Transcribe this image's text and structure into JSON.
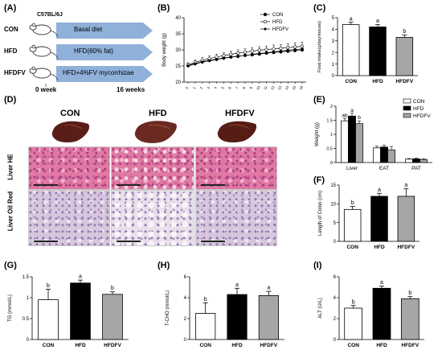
{
  "panel_labels": {
    "A": "(A)",
    "B": "(B)",
    "C": "(C)",
    "D": "(D)",
    "E": "(E)",
    "F": "(F)",
    "G": "(G)",
    "H": "(H)",
    "I": "(I)"
  },
  "panel_a": {
    "mouse_strain": "C57BL/6J",
    "groups": [
      {
        "name": "CON",
        "diet": "Basal diet"
      },
      {
        "name": "HFD",
        "diet": "HFD(60% fat)"
      },
      {
        "name": "HFDFV",
        "diet": "HFD+4%FV mycorrhizae"
      }
    ],
    "start_label": "0 week",
    "end_label": "16 weeks",
    "arrow_color": "#8fb0d9"
  },
  "panel_d": {
    "groups": [
      "CON",
      "HFD",
      "HFDFV"
    ],
    "row_labels": [
      "Liver HE",
      "Liver Oil Red"
    ],
    "he_color": "#e07aa4",
    "oil_color": "#d7c6dc",
    "liver_color": "#5a1e18"
  },
  "chart_data": [
    {
      "id": "B",
      "type": "line",
      "ylabel": "Body weight (g)",
      "ylim": [
        20,
        40
      ],
      "yticks": [
        20,
        25,
        30,
        35,
        40
      ],
      "x": [
        "0",
        "1",
        "2",
        "3",
        "4",
        "5",
        "6",
        "7",
        "8",
        "9",
        "10",
        "11",
        "12",
        "13",
        "14",
        "15",
        "16"
      ],
      "series": [
        {
          "name": "CON",
          "marker": "filled-circle",
          "values": [
            25.2,
            25.8,
            26.3,
            26.8,
            27.1,
            27.5,
            27.8,
            28.0,
            28.3,
            28.5,
            28.7,
            29.0,
            29.2,
            29.4,
            29.6,
            29.8,
            30.0
          ]
        },
        {
          "name": "HFD",
          "marker": "open-circle",
          "values": [
            25.4,
            26.1,
            26.8,
            27.3,
            27.8,
            28.2,
            28.6,
            29.0,
            29.3,
            29.6,
            29.9,
            30.1,
            30.3,
            30.5,
            30.7,
            30.9,
            31.1
          ]
        },
        {
          "name": "HFDFV",
          "marker": "filled-diamond",
          "values": [
            25.0,
            25.6,
            26.2,
            26.6,
            27.0,
            27.4,
            27.7,
            28.0,
            28.3,
            28.6,
            28.9,
            29.1,
            29.4,
            29.6,
            29.9,
            30.1,
            30.3
          ]
        }
      ],
      "error": [
        0.6,
        0.7,
        0.8,
        0.8,
        0.9,
        0.9,
        1.0,
        1.0,
        1.0,
        1.1,
        1.1,
        1.1,
        1.2,
        1.2,
        1.2,
        1.3,
        1.3
      ]
    },
    {
      "id": "C",
      "type": "bar",
      "ylabel": "Food intake(g/day/mouse)",
      "categories": [
        "CON",
        "HFD",
        "HFDFV"
      ],
      "values": [
        4.4,
        4.2,
        3.3
      ],
      "error": [
        0.2,
        0.2,
        0.2
      ],
      "letters": [
        "a",
        "a",
        "b"
      ],
      "ylim": [
        0,
        5
      ],
      "yticks": [
        0,
        1,
        2,
        3,
        4,
        5
      ]
    },
    {
      "id": "E",
      "type": "bar",
      "ylabel": "Weight (g)",
      "categories": [
        "Liver",
        "EAT",
        "PAT"
      ],
      "series": [
        {
          "name": "CON",
          "values": [
            1.48,
            0.52,
            0.12
          ]
        },
        {
          "name": "HFD",
          "values": [
            1.65,
            0.55,
            0.13
          ]
        },
        {
          "name": "HFDFV",
          "values": [
            1.38,
            0.45,
            0.11
          ]
        }
      ],
      "error": [
        [
          0.08,
          0.06,
          0.02
        ],
        [
          0.1,
          0.07,
          0.02
        ],
        [
          0.1,
          0.12,
          0.02
        ]
      ],
      "letters": [
        [
          "ab",
          "",
          ""
        ],
        [
          "a",
          "",
          ""
        ],
        [
          "b",
          "",
          ""
        ]
      ],
      "ylim": [
        0,
        2.0
      ],
      "yticks": [
        0.0,
        0.5,
        1.0,
        1.5,
        2.0
      ],
      "legend_position": "top-right"
    },
    {
      "id": "F",
      "type": "bar",
      "ylabel": "Length of Colon (cm)",
      "categories": [
        "CON",
        "HFD",
        "HFDFV"
      ],
      "values": [
        8.5,
        12.0,
        12.0
      ],
      "error": [
        0.8,
        0.8,
        2.0
      ],
      "letters": [
        "b",
        "a",
        "a"
      ],
      "ylim": [
        0,
        15
      ],
      "yticks": [
        0,
        5,
        10,
        15
      ]
    },
    {
      "id": "G",
      "type": "bar",
      "ylabel": "TG (mmol/L)",
      "categories": [
        "CON",
        "HFD",
        "HFDFV"
      ],
      "values": [
        0.95,
        1.35,
        1.08
      ],
      "error": [
        0.25,
        0.07,
        0.06
      ],
      "letters": [
        "b",
        "a",
        "b"
      ],
      "ylim": [
        0,
        1.5
      ],
      "yticks": [
        0.0,
        0.5,
        1.0,
        1.5
      ]
    },
    {
      "id": "H",
      "type": "bar",
      "ylabel": "T-CHO (mmol/L)",
      "categories": [
        "CON",
        "HFD",
        "HFDFV"
      ],
      "values": [
        2.5,
        4.3,
        4.2
      ],
      "error": [
        1.0,
        0.6,
        0.4
      ],
      "letters": [
        "b",
        "a",
        "a"
      ],
      "ylim": [
        0,
        6
      ],
      "yticks": [
        0,
        2,
        4,
        6
      ]
    },
    {
      "id": "I",
      "type": "bar",
      "ylabel": "ALT (U/L)",
      "categories": [
        "CON",
        "HFD",
        "HFDFV"
      ],
      "values": [
        3.0,
        4.9,
        3.9
      ],
      "error": [
        0.25,
        0.2,
        0.2
      ],
      "letters": [
        "b",
        "a",
        "b"
      ],
      "ylim": [
        0,
        6
      ],
      "yticks": [
        0,
        2,
        4,
        6
      ]
    }
  ],
  "colors": {
    "CON": "#ffffff",
    "HFD": "#000000",
    "HFDFV": "#a6a6a6"
  }
}
